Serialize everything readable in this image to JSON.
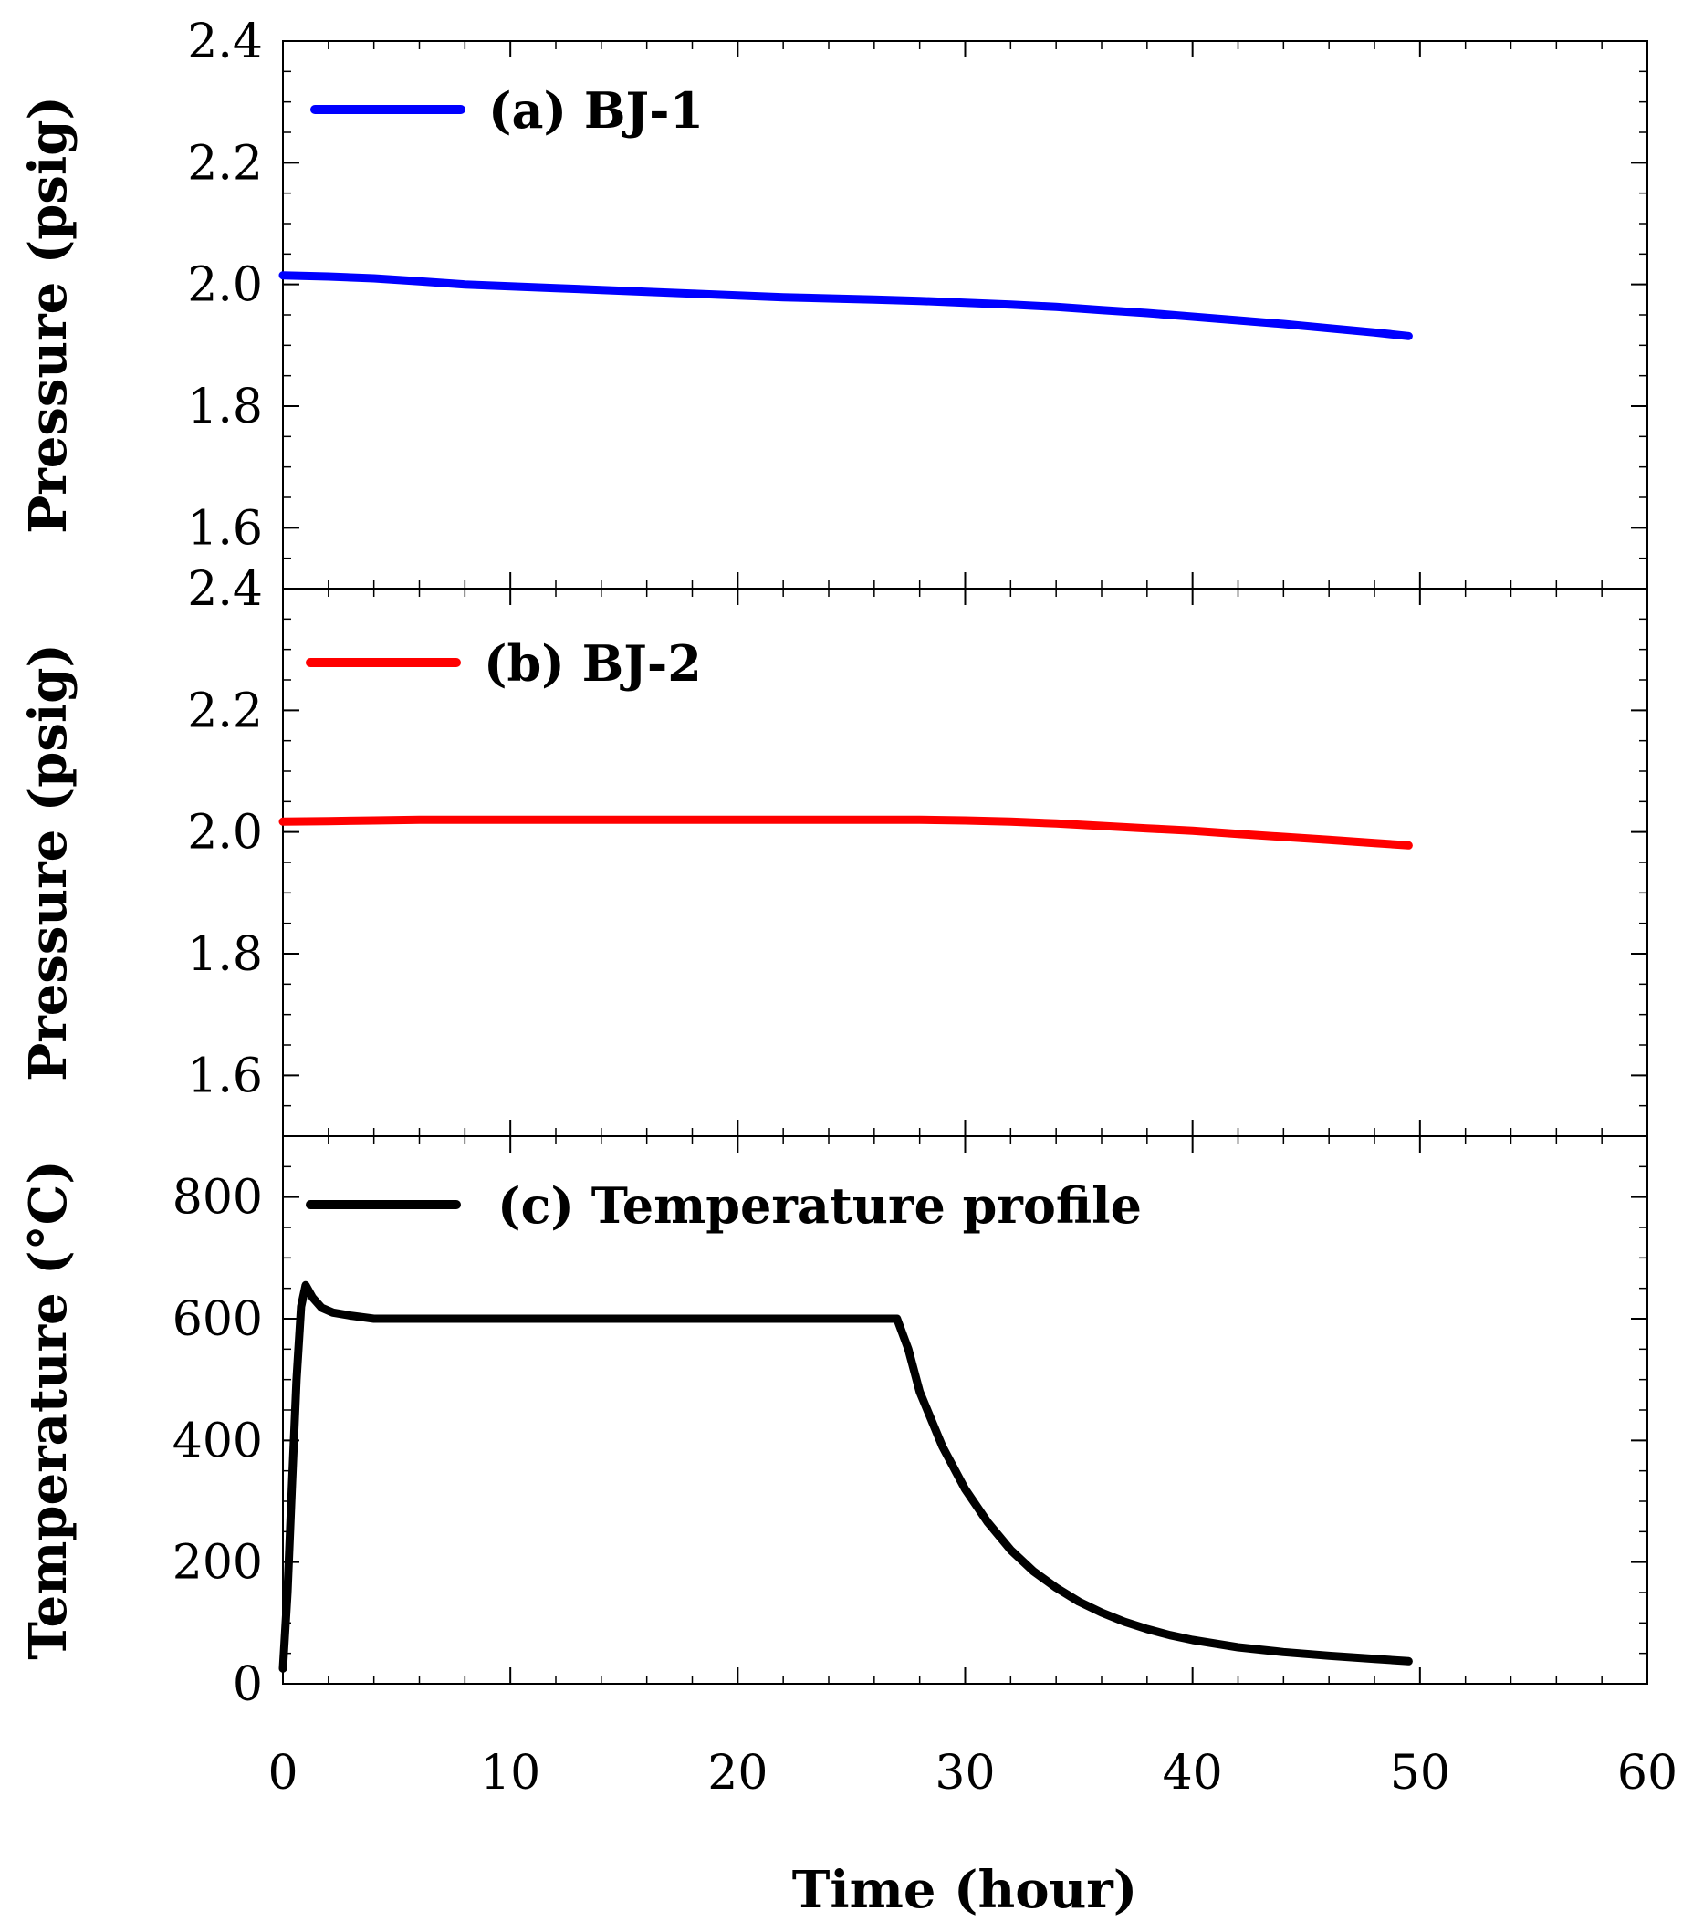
{
  "figure": {
    "xlabel": "Time (hour)",
    "xlim": [
      0,
      60
    ],
    "x_ticks": [
      0,
      10,
      20,
      30,
      40,
      50,
      60
    ]
  },
  "chart_data": [
    {
      "type": "line",
      "panel": "a",
      "legend": "(a) BJ-1",
      "color": "#0000ff",
      "ylabel": "Pressure (psig)",
      "ylim": [
        1.5,
        2.4
      ],
      "y_ticks": [
        1.6,
        1.8,
        2.0,
        2.2,
        2.4
      ],
      "x": [
        0,
        2,
        4,
        6,
        8,
        10,
        12,
        14,
        16,
        18,
        20,
        22,
        24,
        26,
        28,
        30,
        32,
        34,
        36,
        38,
        40,
        42,
        44,
        46,
        48,
        49.5
      ],
      "y": [
        2.015,
        2.013,
        2.01,
        2.005,
        2.0,
        1.997,
        1.994,
        1.991,
        1.988,
        1.985,
        1.982,
        1.979,
        1.977,
        1.975,
        1.973,
        1.97,
        1.967,
        1.963,
        1.958,
        1.953,
        1.947,
        1.941,
        1.935,
        1.928,
        1.921,
        1.915
      ]
    },
    {
      "type": "line",
      "panel": "b",
      "legend": "(b) BJ-2",
      "color": "#ff0000",
      "ylabel": "Pressure (psig)",
      "ylim": [
        1.5,
        2.4
      ],
      "y_ticks": [
        1.6,
        1.8,
        2.0,
        2.2,
        2.4
      ],
      "x": [
        0,
        2,
        4,
        6,
        8,
        10,
        12,
        14,
        16,
        18,
        20,
        22,
        24,
        26,
        28,
        30,
        32,
        34,
        36,
        38,
        40,
        42,
        44,
        46,
        48,
        49.5
      ],
      "y": [
        2.017,
        2.018,
        2.019,
        2.02,
        2.02,
        2.02,
        2.02,
        2.02,
        2.02,
        2.02,
        2.02,
        2.02,
        2.02,
        2.02,
        2.02,
        2.019,
        2.017,
        2.014,
        2.01,
        2.006,
        2.002,
        1.997,
        1.992,
        1.987,
        1.982,
        1.978
      ]
    },
    {
      "type": "line",
      "panel": "c",
      "legend": "(c) Temperature profile",
      "color": "#000000",
      "ylabel": "Temperature (°C)",
      "ylim": [
        0,
        900
      ],
      "y_ticks": [
        0,
        200,
        400,
        600,
        800
      ],
      "x": [
        0,
        0.2,
        0.4,
        0.6,
        0.8,
        1.0,
        1.3,
        1.7,
        2.2,
        3.0,
        4.0,
        6,
        10,
        15,
        20,
        25,
        27,
        27.5,
        28,
        29,
        30,
        31,
        32,
        33,
        34,
        35,
        36,
        37,
        38,
        39,
        40,
        42,
        44,
        46,
        48,
        49.5
      ],
      "y": [
        25,
        150,
        330,
        500,
        620,
        655,
        635,
        618,
        610,
        605,
        600,
        600,
        600,
        600,
        600,
        600,
        600,
        550,
        480,
        390,
        320,
        265,
        220,
        185,
        158,
        135,
        117,
        102,
        90,
        80,
        72,
        60,
        52,
        46,
        41,
        37
      ]
    }
  ]
}
